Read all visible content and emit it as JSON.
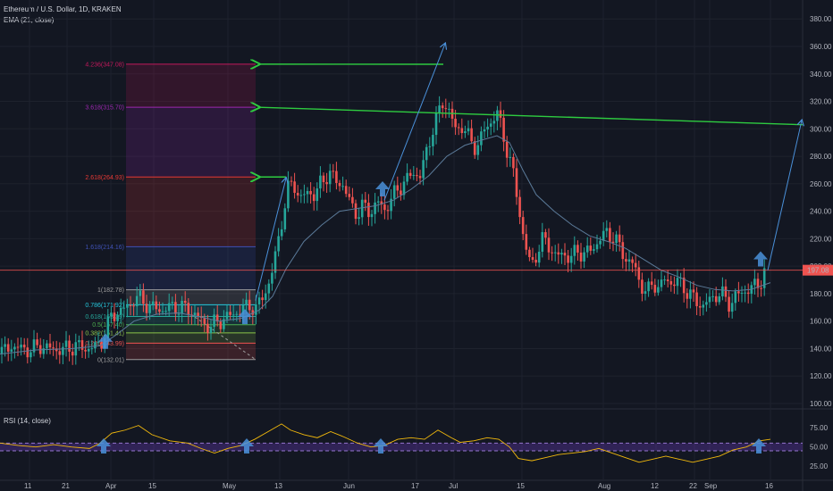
{
  "header": {
    "symbol": "Ethereum / U.S. Dollar, 1D, KRAKEN",
    "ema_label": "EMA (21, close)",
    "rsi_label": "RSI (14, close)"
  },
  "price_tag": "197.08",
  "colors": {
    "background": "#131722",
    "up": "#26a69a",
    "down": "#ef5350",
    "ema": "#5b7a99",
    "rsi": "#f2b90c",
    "arrow": "#4a90d9",
    "green_line": "#2ecc40",
    "price_line": "#ef5350"
  },
  "chart_data": [
    {
      "type": "candlestick",
      "x_axis": {
        "tick_labels": [
          "11",
          "21",
          "Apr",
          "15",
          "May",
          "13",
          "Jun",
          "17",
          "Jul",
          "15",
          "Aug",
          "12",
          "22",
          "Sep",
          "16"
        ]
      },
      "y_axis": {
        "tick_labels": [
          "380.00",
          "360.00",
          "340.00",
          "320.00",
          "300.00",
          "280.00",
          "260.00",
          "240.00",
          "220.00",
          "200.00",
          "180.00",
          "160.00",
          "140.00",
          "120.00",
          "100.00"
        ],
        "range": [
          100,
          386
        ]
      },
      "last_price": 197.08,
      "close_path": [
        [
          0,
          136
        ],
        [
          12,
          142
        ],
        [
          22,
          140
        ],
        [
          35,
          139
        ],
        [
          45,
          142
        ],
        [
          55,
          140
        ],
        [
          70,
          139
        ],
        [
          85,
          142
        ],
        [
          95,
          140
        ],
        [
          105,
          141
        ],
        [
          112,
          143
        ],
        [
          118,
          152
        ],
        [
          124,
          163
        ],
        [
          130,
          166
        ],
        [
          137,
          168
        ],
        [
          145,
          171
        ],
        [
          152,
          178
        ],
        [
          160,
          174
        ],
        [
          170,
          170
        ],
        [
          180,
          168
        ],
        [
          190,
          170
        ],
        [
          200,
          170
        ],
        [
          210,
          169
        ],
        [
          220,
          164
        ],
        [
          228,
          158
        ],
        [
          235,
          156
        ],
        [
          245,
          160
        ],
        [
          255,
          163
        ],
        [
          263,
          166
        ],
        [
          272,
          169
        ],
        [
          280,
          172
        ],
        [
          287,
          168
        ],
        [
          295,
          180
        ],
        [
          303,
          190
        ],
        [
          310,
          215
        ],
        [
          316,
          235
        ],
        [
          322,
          255
        ],
        [
          328,
          262
        ],
        [
          336,
          248
        ],
        [
          345,
          255
        ],
        [
          352,
          251
        ],
        [
          360,
          262
        ],
        [
          368,
          268
        ],
        [
          376,
          262
        ],
        [
          384,
          259
        ],
        [
          392,
          245
        ],
        [
          400,
          238
        ],
        [
          407,
          244
        ],
        [
          415,
          239
        ],
        [
          422,
          247
        ],
        [
          430,
          241
        ],
        [
          438,
          249
        ],
        [
          446,
          257
        ],
        [
          454,
          262
        ],
        [
          462,
          268
        ],
        [
          470,
          266
        ],
        [
          477,
          282
        ],
        [
          484,
          300
        ],
        [
          490,
          310
        ],
        [
          496,
          320
        ],
        [
          503,
          313
        ],
        [
          510,
          298
        ],
        [
          518,
          303
        ],
        [
          525,
          292
        ],
        [
          533,
          286
        ],
        [
          541,
          298
        ],
        [
          549,
          305
        ],
        [
          556,
          312
        ],
        [
          562,
          298
        ],
        [
          568,
          283
        ],
        [
          574,
          268
        ],
        [
          580,
          245
        ],
        [
          587,
          216
        ],
        [
          594,
          200
        ],
        [
          601,
          210
        ],
        [
          608,
          220
        ],
        [
          615,
          215
        ],
        [
          622,
          206
        ],
        [
          630,
          210
        ],
        [
          638,
          205
        ],
        [
          646,
          212
        ],
        [
          654,
          208
        ],
        [
          662,
          213
        ],
        [
          670,
          218
        ],
        [
          678,
          225
        ],
        [
          686,
          221
        ],
        [
          694,
          213
        ],
        [
          702,
          204
        ],
        [
          710,
          200
        ],
        [
          717,
          186
        ],
        [
          724,
          180
        ],
        [
          731,
          189
        ],
        [
          738,
          183
        ],
        [
          745,
          192
        ],
        [
          752,
          187
        ],
        [
          759,
          189
        ],
        [
          766,
          184
        ],
        [
          773,
          178
        ],
        [
          780,
          174
        ],
        [
          787,
          171
        ],
        [
          795,
          176
        ],
        [
          803,
          180
        ],
        [
          810,
          178
        ],
        [
          817,
          172
        ],
        [
          823,
          178
        ],
        [
          830,
          181
        ],
        [
          837,
          183
        ],
        [
          844,
          185
        ],
        [
          850,
          188
        ],
        [
          857,
          198
        ]
      ],
      "ema_path": [
        [
          0,
          136
        ],
        [
          40,
          139
        ],
        [
          80,
          140
        ],
        [
          112,
          142
        ],
        [
          130,
          150
        ],
        [
          150,
          160
        ],
        [
          175,
          165
        ],
        [
          200,
          166
        ],
        [
          225,
          163
        ],
        [
          245,
          160
        ],
        [
          270,
          162
        ],
        [
          290,
          168
        ],
        [
          305,
          178
        ],
        [
          320,
          198
        ],
        [
          340,
          218
        ],
        [
          360,
          230
        ],
        [
          380,
          240
        ],
        [
          400,
          242
        ],
        [
          420,
          244
        ],
        [
          440,
          248
        ],
        [
          460,
          256
        ],
        [
          480,
          266
        ],
        [
          500,
          280
        ],
        [
          520,
          288
        ],
        [
          540,
          292
        ],
        [
          556,
          295
        ],
        [
          570,
          290
        ],
        [
          585,
          270
        ],
        [
          600,
          252
        ],
        [
          620,
          240
        ],
        [
          640,
          230
        ],
        [
          660,
          222
        ],
        [
          680,
          218
        ],
        [
          700,
          213
        ],
        [
          720,
          205
        ],
        [
          740,
          197
        ],
        [
          760,
          192
        ],
        [
          780,
          186
        ],
        [
          800,
          183
        ],
        [
          820,
          182
        ],
        [
          840,
          183
        ],
        [
          862,
          188
        ]
      ],
      "fibonacci": {
        "levels": [
          {
            "label": "4.236(347.08)",
            "price": 347.08,
            "color": "#c2185b"
          },
          {
            "label": "3.618(315.70)",
            "price": 315.7,
            "color": "#9c27b0"
          },
          {
            "label": "2.618(264.93)",
            "price": 264.93,
            "color": "#e53935"
          },
          {
            "label": "1.618(214.16)",
            "price": 214.16,
            "color": "#3f51b5"
          },
          {
            "label": "1(182.78)",
            "price": 182.78,
            "color": "#9e9e9e"
          },
          {
            "label": "0.786(171.92)",
            "price": 171.92,
            "color": "#26c6da"
          },
          {
            "label": "0.618(163.39)",
            "price": 163.39,
            "color": "#26a69a"
          },
          {
            "label": "0.5(157.40)",
            "price": 157.4,
            "color": "#4caf50"
          },
          {
            "label": "0.382(151.41)",
            "price": 151.41,
            "color": "#8bc34a"
          },
          {
            "label": "0.236(143.99)",
            "price": 143.99,
            "color": "#ef5350"
          },
          {
            "label": "0(132.01)",
            "price": 132.01,
            "color": "#9e9e9e"
          }
        ]
      }
    },
    {
      "type": "line",
      "series_label": "RSI (14, close)",
      "y_axis": {
        "tick_labels": [
          "75.00",
          "50.00",
          "25.00"
        ],
        "range": [
          10,
          95
        ]
      },
      "band": [
        45,
        55
      ],
      "rsi_path": [
        [
          0,
          55
        ],
        [
          20,
          52
        ],
        [
          40,
          50
        ],
        [
          60,
          53
        ],
        [
          80,
          50
        ],
        [
          100,
          48
        ],
        [
          112,
          55
        ],
        [
          125,
          68
        ],
        [
          140,
          72
        ],
        [
          155,
          78
        ],
        [
          170,
          66
        ],
        [
          190,
          58
        ],
        [
          210,
          55
        ],
        [
          225,
          48
        ],
        [
          240,
          42
        ],
        [
          255,
          48
        ],
        [
          270,
          52
        ],
        [
          285,
          60
        ],
        [
          300,
          70
        ],
        [
          315,
          80
        ],
        [
          325,
          72
        ],
        [
          340,
          66
        ],
        [
          355,
          62
        ],
        [
          370,
          70
        ],
        [
          385,
          63
        ],
        [
          400,
          55
        ],
        [
          415,
          50
        ],
        [
          430,
          52
        ],
        [
          445,
          60
        ],
        [
          460,
          62
        ],
        [
          475,
          60
        ],
        [
          490,
          72
        ],
        [
          505,
          62
        ],
        [
          515,
          56
        ],
        [
          530,
          58
        ],
        [
          545,
          62
        ],
        [
          558,
          60
        ],
        [
          570,
          50
        ],
        [
          580,
          35
        ],
        [
          595,
          32
        ],
        [
          610,
          36
        ],
        [
          625,
          40
        ],
        [
          640,
          42
        ],
        [
          655,
          44
        ],
        [
          670,
          48
        ],
        [
          685,
          42
        ],
        [
          700,
          36
        ],
        [
          715,
          30
        ],
        [
          730,
          34
        ],
        [
          745,
          38
        ],
        [
          760,
          34
        ],
        [
          775,
          30
        ],
        [
          790,
          34
        ],
        [
          805,
          38
        ],
        [
          820,
          46
        ],
        [
          835,
          50
        ],
        [
          850,
          58
        ],
        [
          862,
          60
        ]
      ]
    }
  ]
}
